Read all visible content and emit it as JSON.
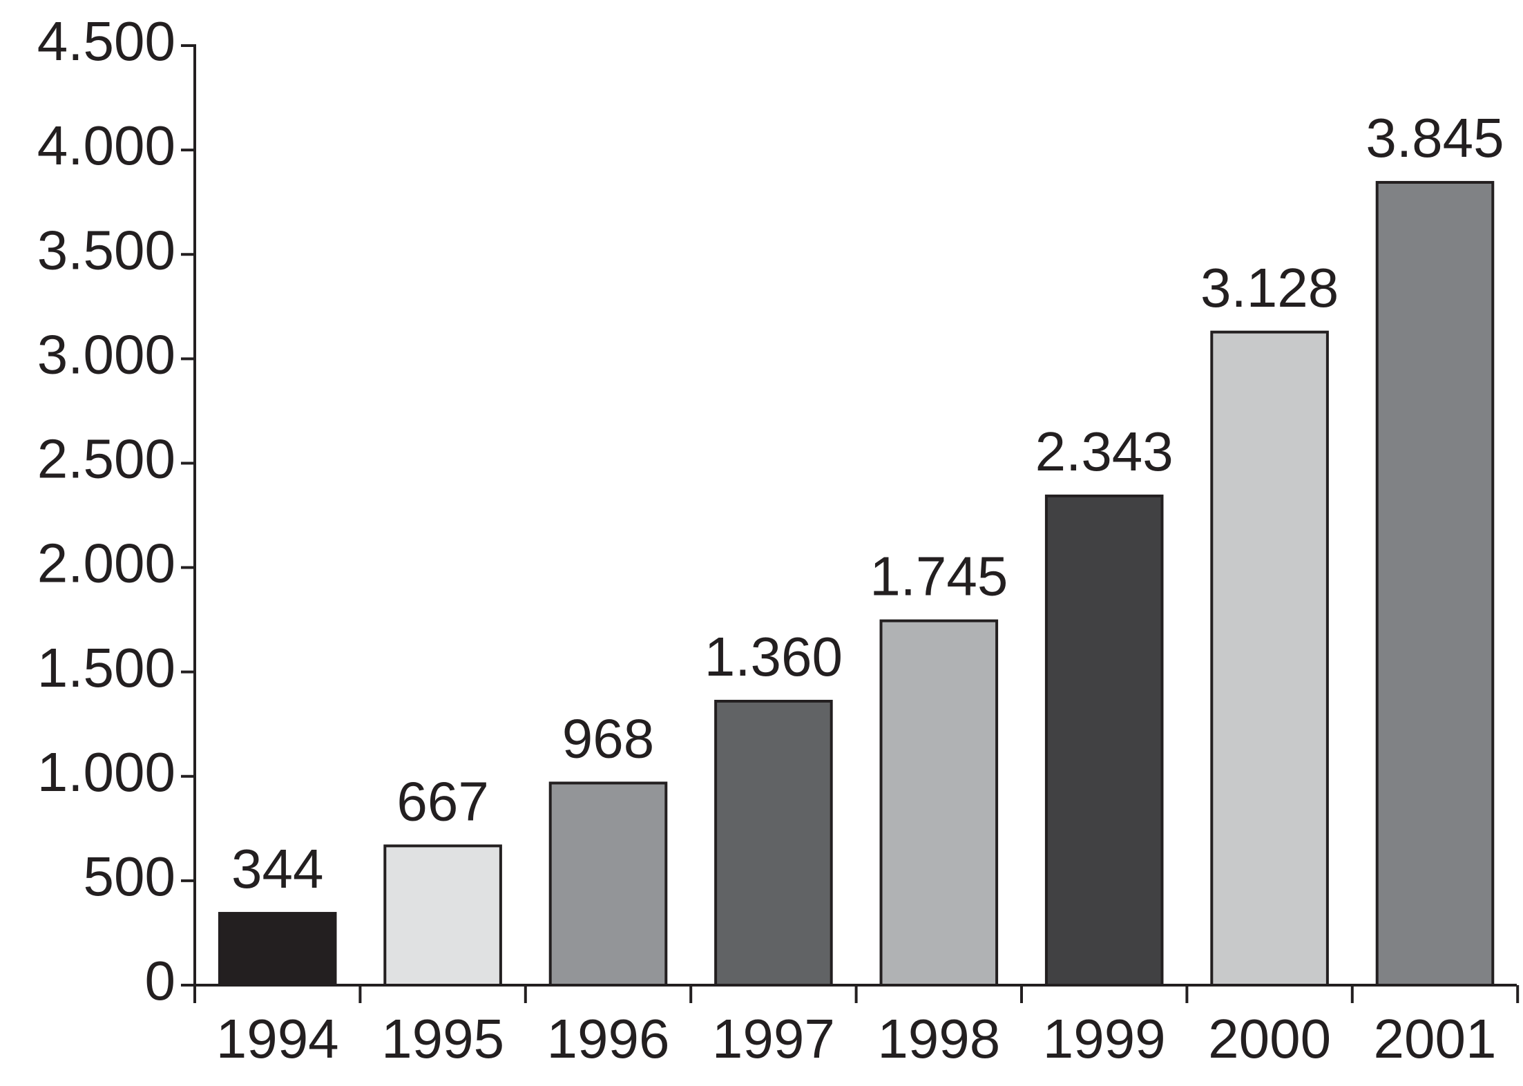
{
  "chart_data": {
    "type": "bar",
    "categories": [
      "1994",
      "1995",
      "1996",
      "1997",
      "1998",
      "1999",
      "2000",
      "2001"
    ],
    "values": [
      344,
      667,
      968,
      1360,
      1745,
      2343,
      3128,
      3845
    ],
    "value_labels": [
      "344",
      "667",
      "968",
      "1.360",
      "1.745",
      "2.343",
      "3.128",
      "3.845"
    ],
    "colors": [
      "#231f20",
      "#e0e1e2",
      "#939598",
      "#616365",
      "#b0b2b4",
      "#414143",
      "#c8c9ca",
      "#808285"
    ],
    "ylim": [
      0,
      4500
    ],
    "yticks": [
      0,
      500,
      {
        "value": 1000,
        "label": "1.000"
      },
      {
        "value": 1500,
        "label": "1.500"
      },
      {
        "value": 2000,
        "label": "2.000"
      },
      {
        "value": 2500,
        "label": "2.500"
      },
      {
        "value": 3000,
        "label": "3.000"
      },
      {
        "value": 3500,
        "label": "3.500"
      },
      {
        "value": 4000,
        "label": "4.000"
      },
      {
        "value": 4500,
        "label": "4.500"
      }
    ]
  }
}
